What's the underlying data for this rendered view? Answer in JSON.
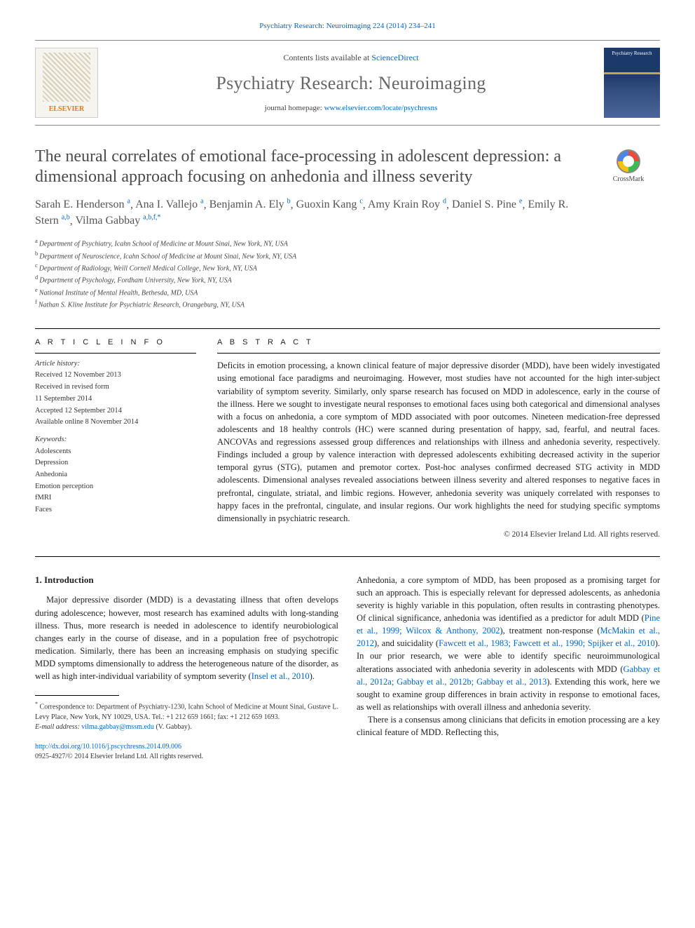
{
  "citation": {
    "text_prefix": "Psychiatry Research: Neuroimaging 224 (2014) 234–241",
    "link_label": "Psychiatry Research: Neuroimaging 224 (2014) 234–241"
  },
  "header": {
    "elsevier_label": "ELSEVIER",
    "contents_line_prefix": "Contents lists available at ",
    "contents_link": "ScienceDirect",
    "journal_title": "Psychiatry Research: Neuroimaging",
    "homepage_prefix": "journal homepage: ",
    "homepage_link": "www.elsevier.com/locate/psychresns",
    "cover_label": "Psychiatry Research"
  },
  "crossmark_label": "CrossMark",
  "article": {
    "title": "The neural correlates of emotional face-processing in adolescent depression: a dimensional approach focusing on anhedonia and illness severity",
    "authors_html": [
      {
        "name": "Sarah E. Henderson",
        "sup": "a",
        "sep": ", "
      },
      {
        "name": "Ana I. Vallejo",
        "sup": "a",
        "sep": ", "
      },
      {
        "name": "Benjamin A. Ely",
        "sup": "b",
        "sep": ", "
      },
      {
        "name": "Guoxin Kang",
        "sup": "c",
        "sep": ", "
      },
      {
        "name": "Amy Krain Roy",
        "sup": "d",
        "sep": ", "
      },
      {
        "name": "Daniel S. Pine",
        "sup": "e",
        "sep": ", "
      },
      {
        "name": "Emily R. Stern",
        "sup": "a,b",
        "sep": ", "
      },
      {
        "name": "Vilma Gabbay",
        "sup": "a,b,f,*",
        "sep": ""
      }
    ],
    "affiliations": [
      {
        "key": "a",
        "text": "Department of Psychiatry, Icahn School of Medicine at Mount Sinai, New York, NY, USA"
      },
      {
        "key": "b",
        "text": "Department of Neuroscience, Icahn School of Medicine at Mount Sinai, New York, NY, USA"
      },
      {
        "key": "c",
        "text": "Department of Radiology, Weill Cornell Medical College, New York, NY, USA"
      },
      {
        "key": "d",
        "text": "Department of Psychology, Fordham University, New York, NY, USA"
      },
      {
        "key": "e",
        "text": "National Institute of Mental Health, Bethesda, MD, USA"
      },
      {
        "key": "f",
        "text": "Nathan S. Kline Institute for Psychiatric Research, Orangeburg, NY, USA"
      }
    ]
  },
  "article_info": {
    "left_heading": "A R T I C L E  I N F O",
    "history_heading": "Article history:",
    "history_lines": [
      "Received 12 November 2013",
      "Received in revised form",
      "11 September 2014",
      "Accepted 12 September 2014",
      "Available online 8 November 2014"
    ],
    "keywords_heading": "Keywords:",
    "keywords": [
      "Adolescents",
      "Depression",
      "Anhedonia",
      "Emotion perception",
      "fMRI",
      "Faces"
    ]
  },
  "abstract": {
    "heading": "A B S T R A C T",
    "text": "Deficits in emotion processing, a known clinical feature of major depressive disorder (MDD), have been widely investigated using emotional face paradigms and neuroimaging. However, most studies have not accounted for the high inter-subject variability of symptom severity. Similarly, only sparse research has focused on MDD in adolescence, early in the course of the illness. Here we sought to investigate neural responses to emotional faces using both categorical and dimensional analyses with a focus on anhedonia, a core symptom of MDD associated with poor outcomes. Nineteen medication-free depressed adolescents and 18 healthy controls (HC) were scanned during presentation of happy, sad, fearful, and neutral faces. ANCOVAs and regressions assessed group differences and relationships with illness and anhedonia severity, respectively. Findings included a group by valence interaction with depressed adolescents exhibiting decreased activity in the superior temporal gyrus (STG), putamen and premotor cortex. Post-hoc analyses confirmed decreased STG activity in MDD adolescents. Dimensional analyses revealed associations between illness severity and altered responses to negative faces in prefrontal, cingulate, striatal, and limbic regions. However, anhedonia severity was uniquely correlated with responses to happy faces in the prefrontal, cingulate, and insular regions. Our work highlights the need for studying specific symptoms dimensionally in psychiatric research.",
    "copyright": "© 2014 Elsevier Ireland Ltd. All rights reserved."
  },
  "body": {
    "section_number": "1.",
    "section_title": "Introduction",
    "col1_para1_prefix": "Major depressive disorder (MDD) is a devastating illness that often develops during adolescence; however, most research has examined adults with long-standing illness. Thus, more research is needed in adolescence to identify neurobiological changes early in the course of disease, and in a population free of psychotropic medication. Similarly, there has been an increasing emphasis on studying specific MDD symptoms dimensionally to address the heterogeneous nature of the disorder, as well as high inter-individual variability of symptom severity (",
    "col1_para1_cite": "Insel et al., 2010",
    "col1_para1_suffix": ").",
    "col2_para1_parts": [
      {
        "t": "text",
        "v": "Anhedonia, a core symptom of MDD, has been proposed as a promising target for such an approach. This is especially relevant for depressed adolescents, as anhedonia severity is highly variable in this population, often results in contrasting phenotypes. Of clinical significance, anhedonia was identified as a predictor for adult MDD ("
      },
      {
        "t": "link",
        "v": "Pine et al., 1999; Wilcox & Anthony, 2002"
      },
      {
        "t": "text",
        "v": "), treatment non-response ("
      },
      {
        "t": "link",
        "v": "McMakin et al., 2012"
      },
      {
        "t": "text",
        "v": "), and suicidality ("
      },
      {
        "t": "link",
        "v": "Fawcett et al., 1983; Fawcett et al., 1990; Spijker et al., 2010"
      },
      {
        "t": "text",
        "v": "). In our prior research, we were able to identify specific neuroimmunological alterations associated with anhedonia severity in adolescents with MDD ("
      },
      {
        "t": "link",
        "v": "Gabbay et al., 2012a; Gabbay et al., 2012b; Gabbay et al., 2013"
      },
      {
        "t": "text",
        "v": "). Extending this work, here we sought to examine group differences in brain activity in response to emotional faces, as well as relationships with overall illness and anhedonia severity."
      }
    ],
    "col2_para2": "There is a consensus among clinicians that deficits in emotion processing are a key clinical feature of MDD. Reflecting this,"
  },
  "footnotes": {
    "correspondence_marker": "*",
    "correspondence_text": "Correspondence to: Department of Psychiatry-1230, Icahn School of Medicine at Mount Sinai, Gustave L. Levy Place, New York, NY 10029, USA. Tel.: +1 212 659 1661; fax: +1 212 659 1693.",
    "email_label": "E-mail address: ",
    "email": "vilma.gabbay@mssm.edu",
    "email_person": " (V. Gabbay)."
  },
  "doi": {
    "url": "http://dx.doi.org/10.1016/j.pscychresns.2014.09.006",
    "issn_line": "0925-4927/© 2014 Elsevier Ireland Ltd. All rights reserved."
  },
  "colors": {
    "link": "#0066cc",
    "text": "#1a1a1a",
    "muted": "#666",
    "rule": "#000000"
  },
  "typography": {
    "body_pt": 12.5,
    "title_pt": 24,
    "journal_title_pt": 26,
    "authors_pt": 16,
    "affil_pt": 10,
    "footnote_pt": 10
  }
}
